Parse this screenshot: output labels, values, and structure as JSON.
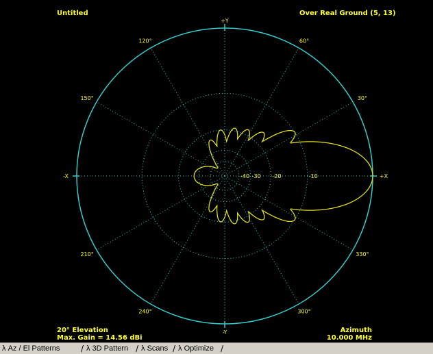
{
  "header": {
    "title": "Untitled",
    "ground": "Over Real Ground (5, 13)"
  },
  "footer": {
    "elevation": "20° Elevation",
    "max_gain": "Max. Gain = 14.56 dBi",
    "mode": "Azimuth",
    "frequency": "10.000 MHz"
  },
  "axes": {
    "plus_y": "+Y",
    "minus_y": "-Y",
    "plus_x": "+X",
    "minus_x": "-X"
  },
  "angle_labels": [
    "30°",
    "60°",
    "120°",
    "150°",
    "210°",
    "240°",
    "300°",
    "330°"
  ],
  "ring_labels": [
    "-10",
    "-20",
    "-30",
    "-40"
  ],
  "tabs": [
    {
      "label": "Az / El Patterns",
      "prefix": "λ"
    },
    {
      "label": "3D Pattern",
      "prefix": "λ"
    },
    {
      "label": "Scans",
      "prefix": "λ"
    },
    {
      "label": "Optimize",
      "prefix": "λ"
    }
  ],
  "colors": {
    "background": "#000000",
    "grid": "#33cccc",
    "pattern": "#dddd22",
    "text": "#ffff33"
  },
  "chart_data": {
    "type": "polar",
    "max_gain_dbi": 14.56,
    "ring_levels_db": [
      -10,
      -20,
      -30,
      -40
    ],
    "lobes": [
      {
        "angle_deg": 0,
        "relative_db": 0
      },
      {
        "angle_deg": 32,
        "relative_db": -10
      },
      {
        "angle_deg": 48,
        "relative_db": -16
      },
      {
        "angle_deg": 63,
        "relative_db": -18
      },
      {
        "angle_deg": 78,
        "relative_db": -19
      },
      {
        "angle_deg": 95,
        "relative_db": -20
      },
      {
        "angle_deg": 112,
        "relative_db": -23
      },
      {
        "angle_deg": 180,
        "relative_db": -27
      }
    ]
  }
}
